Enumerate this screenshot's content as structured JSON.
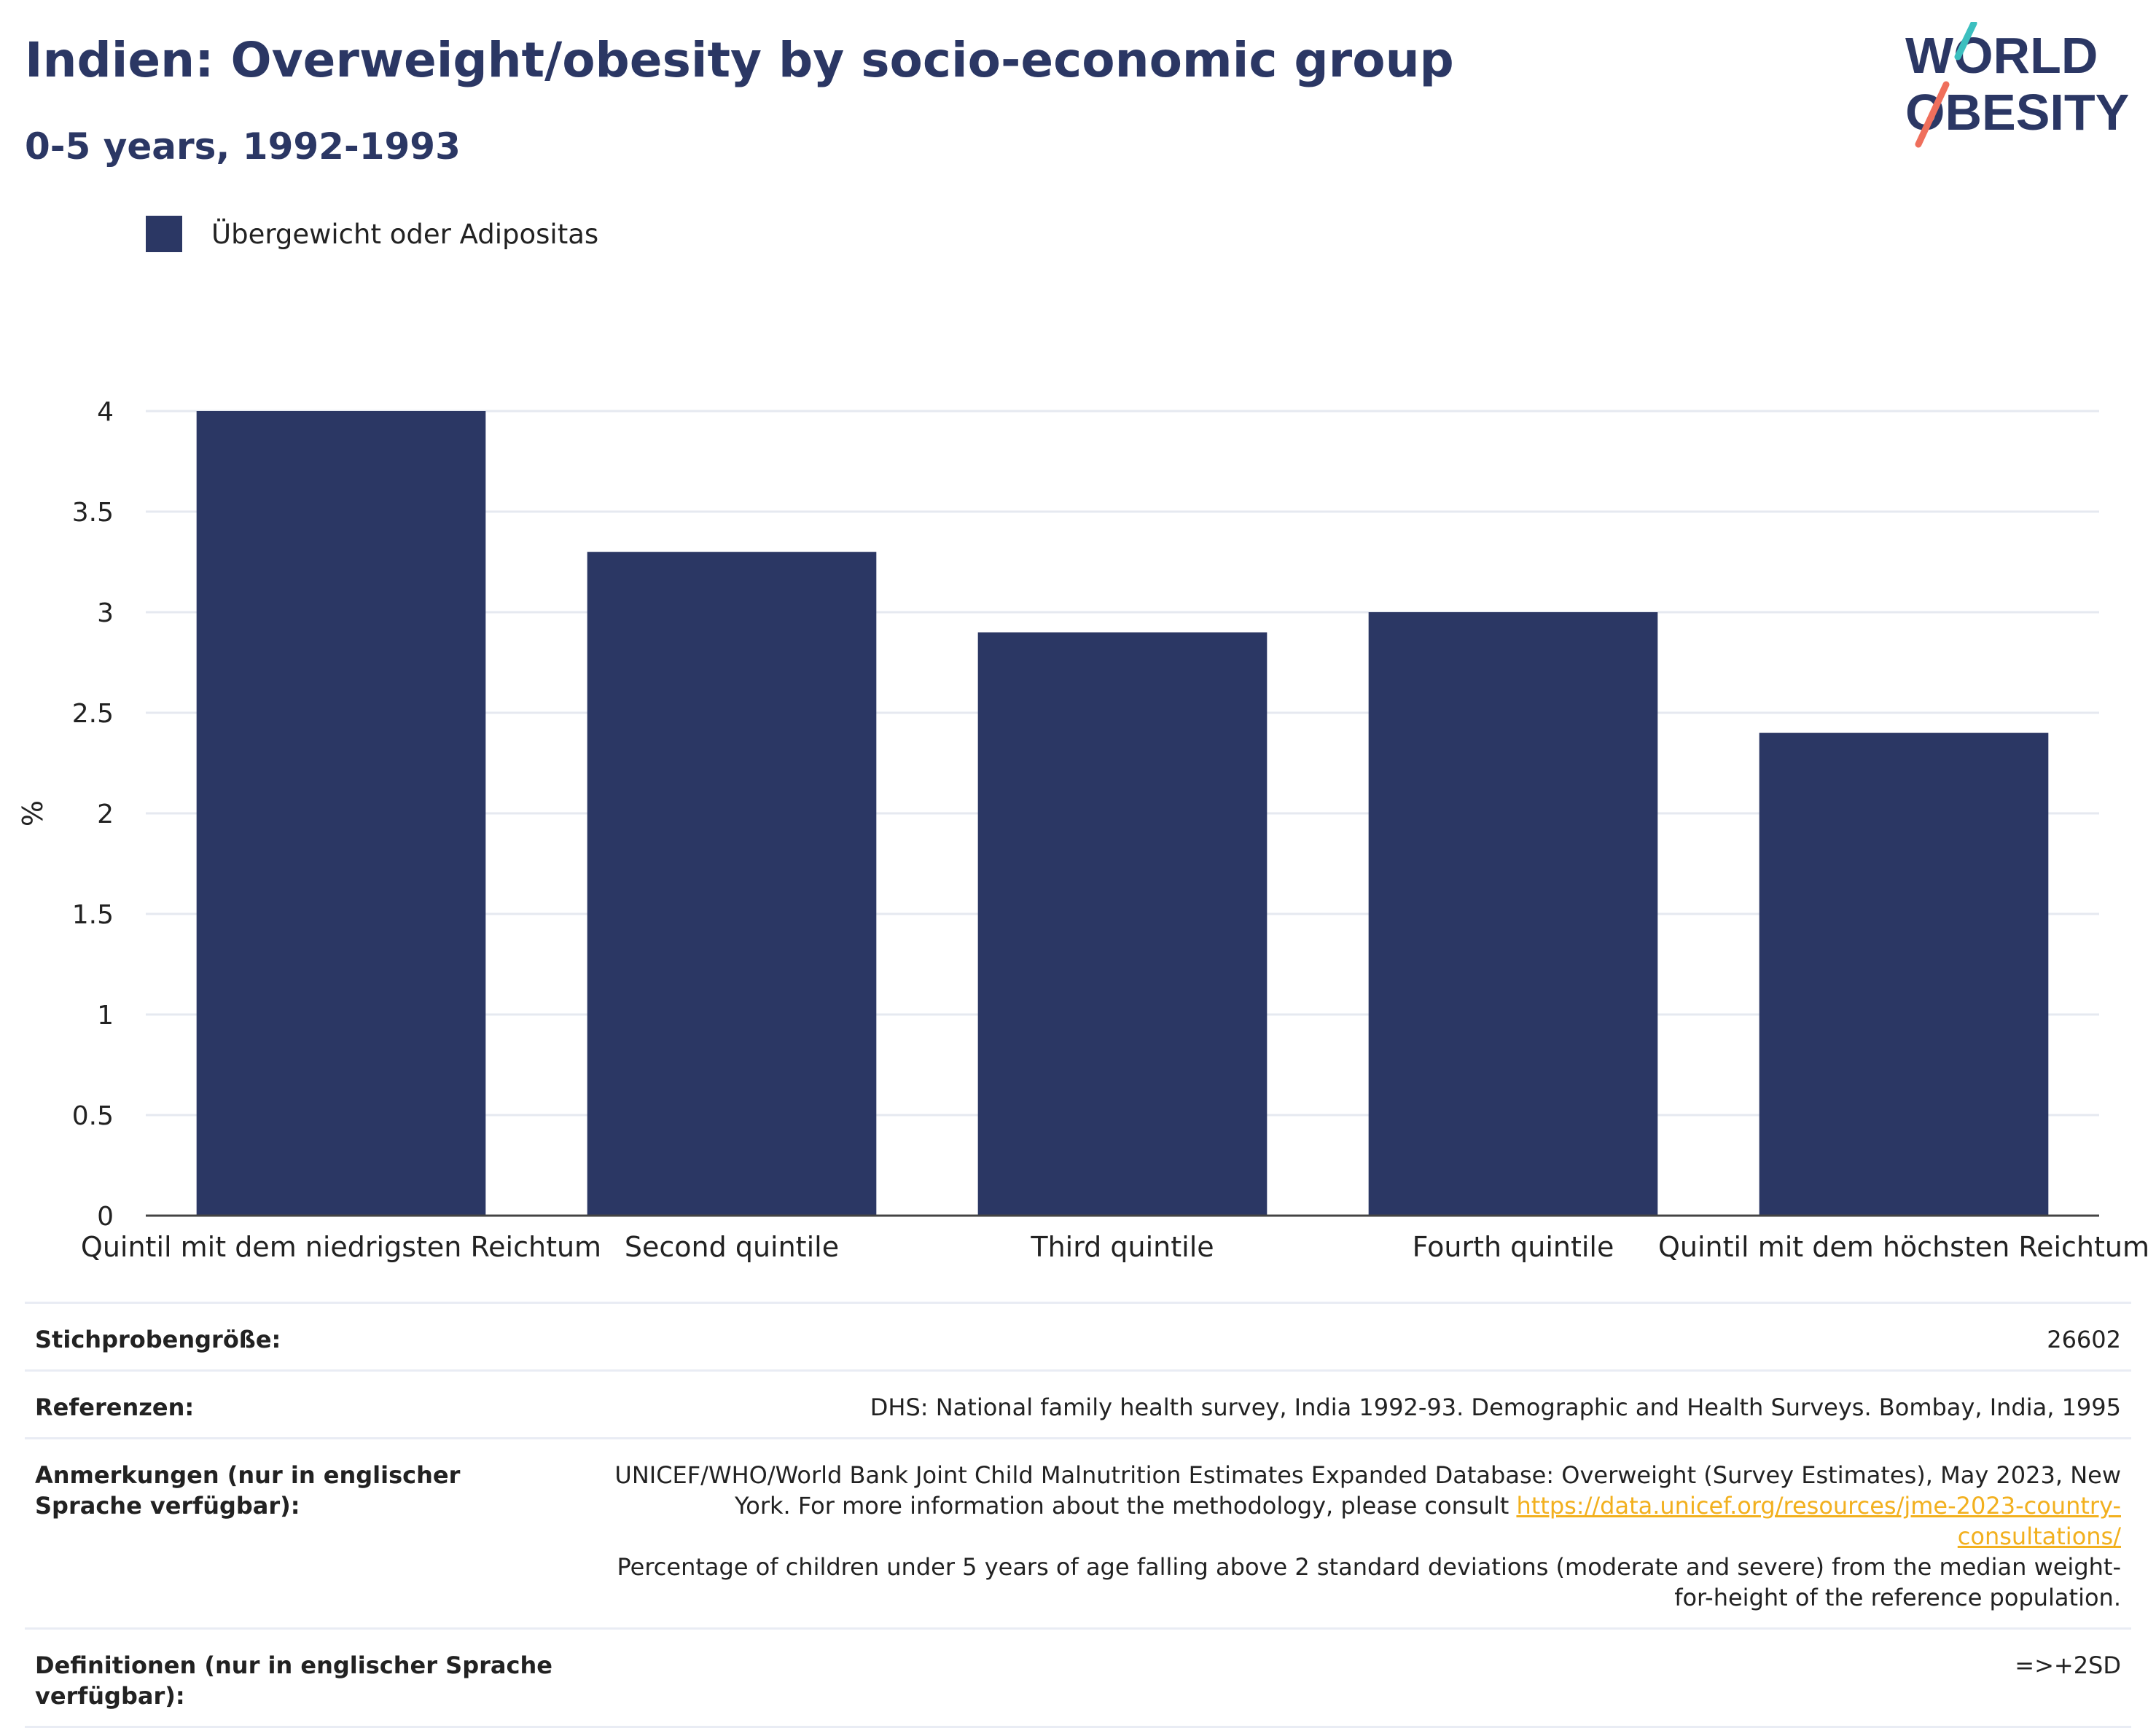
{
  "header": {
    "title": "Indien: Overweight/obesity by socio-economic group",
    "subtitle": "0-5 years, 1992-1993"
  },
  "logo": {
    "line1": "WORLD",
    "line2": "OBESITY",
    "text_color": "#2b3764",
    "accent_teal": "#3cbfbf",
    "accent_coral": "#ef6f5c"
  },
  "legend": {
    "series_name": "Übergewicht oder Adipositas",
    "color": "#2b3764",
    "position": "top-left"
  },
  "chart_data": {
    "type": "bar",
    "categories": [
      "Quintil mit dem niedrigsten Reichtum",
      "Second quintile",
      "Third quintile",
      "Fourth quintile",
      "Quintil mit dem höchsten Reichtum"
    ],
    "series": [
      {
        "name": "Übergewicht oder Adipositas",
        "values": [
          4.0,
          3.3,
          2.9,
          3.0,
          2.4
        ]
      }
    ],
    "ylabel": "%",
    "ylim": [
      0,
      4
    ],
    "yticks": [
      "0",
      "0.5",
      "1",
      "1.5",
      "2",
      "2.5",
      "3",
      "3.5",
      "4"
    ],
    "grid": true,
    "bar_color": "#2b3764"
  },
  "info": {
    "sample_size": {
      "label": "Stichprobengröße:",
      "value": "26602"
    },
    "references": {
      "label": "Referenzen:",
      "value": "DHS: National family health survey, India 1992-93. Demographic and Health Surveys. Bombay, India, 1995"
    },
    "notes": {
      "label": "Anmerkungen (nur in englischer Sprache verfügbar):",
      "text_before_link": "UNICEF/WHO/World Bank Joint Child Malnutrition Estimates Expanded Database: Overweight (Survey Estimates), May 2023, New York. For more information about the methodology, please consult",
      "link": "https://data.unicef.org/resources/jme-2023-country-consultations/",
      "text_after_link": "Percentage of children under 5 years of age falling above 2 standard deviations (moderate and severe) from the median weight-for-height of the reference population."
    },
    "definitions": {
      "label": "Definitionen (nur in englischer Sprache verfügbar):",
      "value": "=>+2SD"
    }
  }
}
